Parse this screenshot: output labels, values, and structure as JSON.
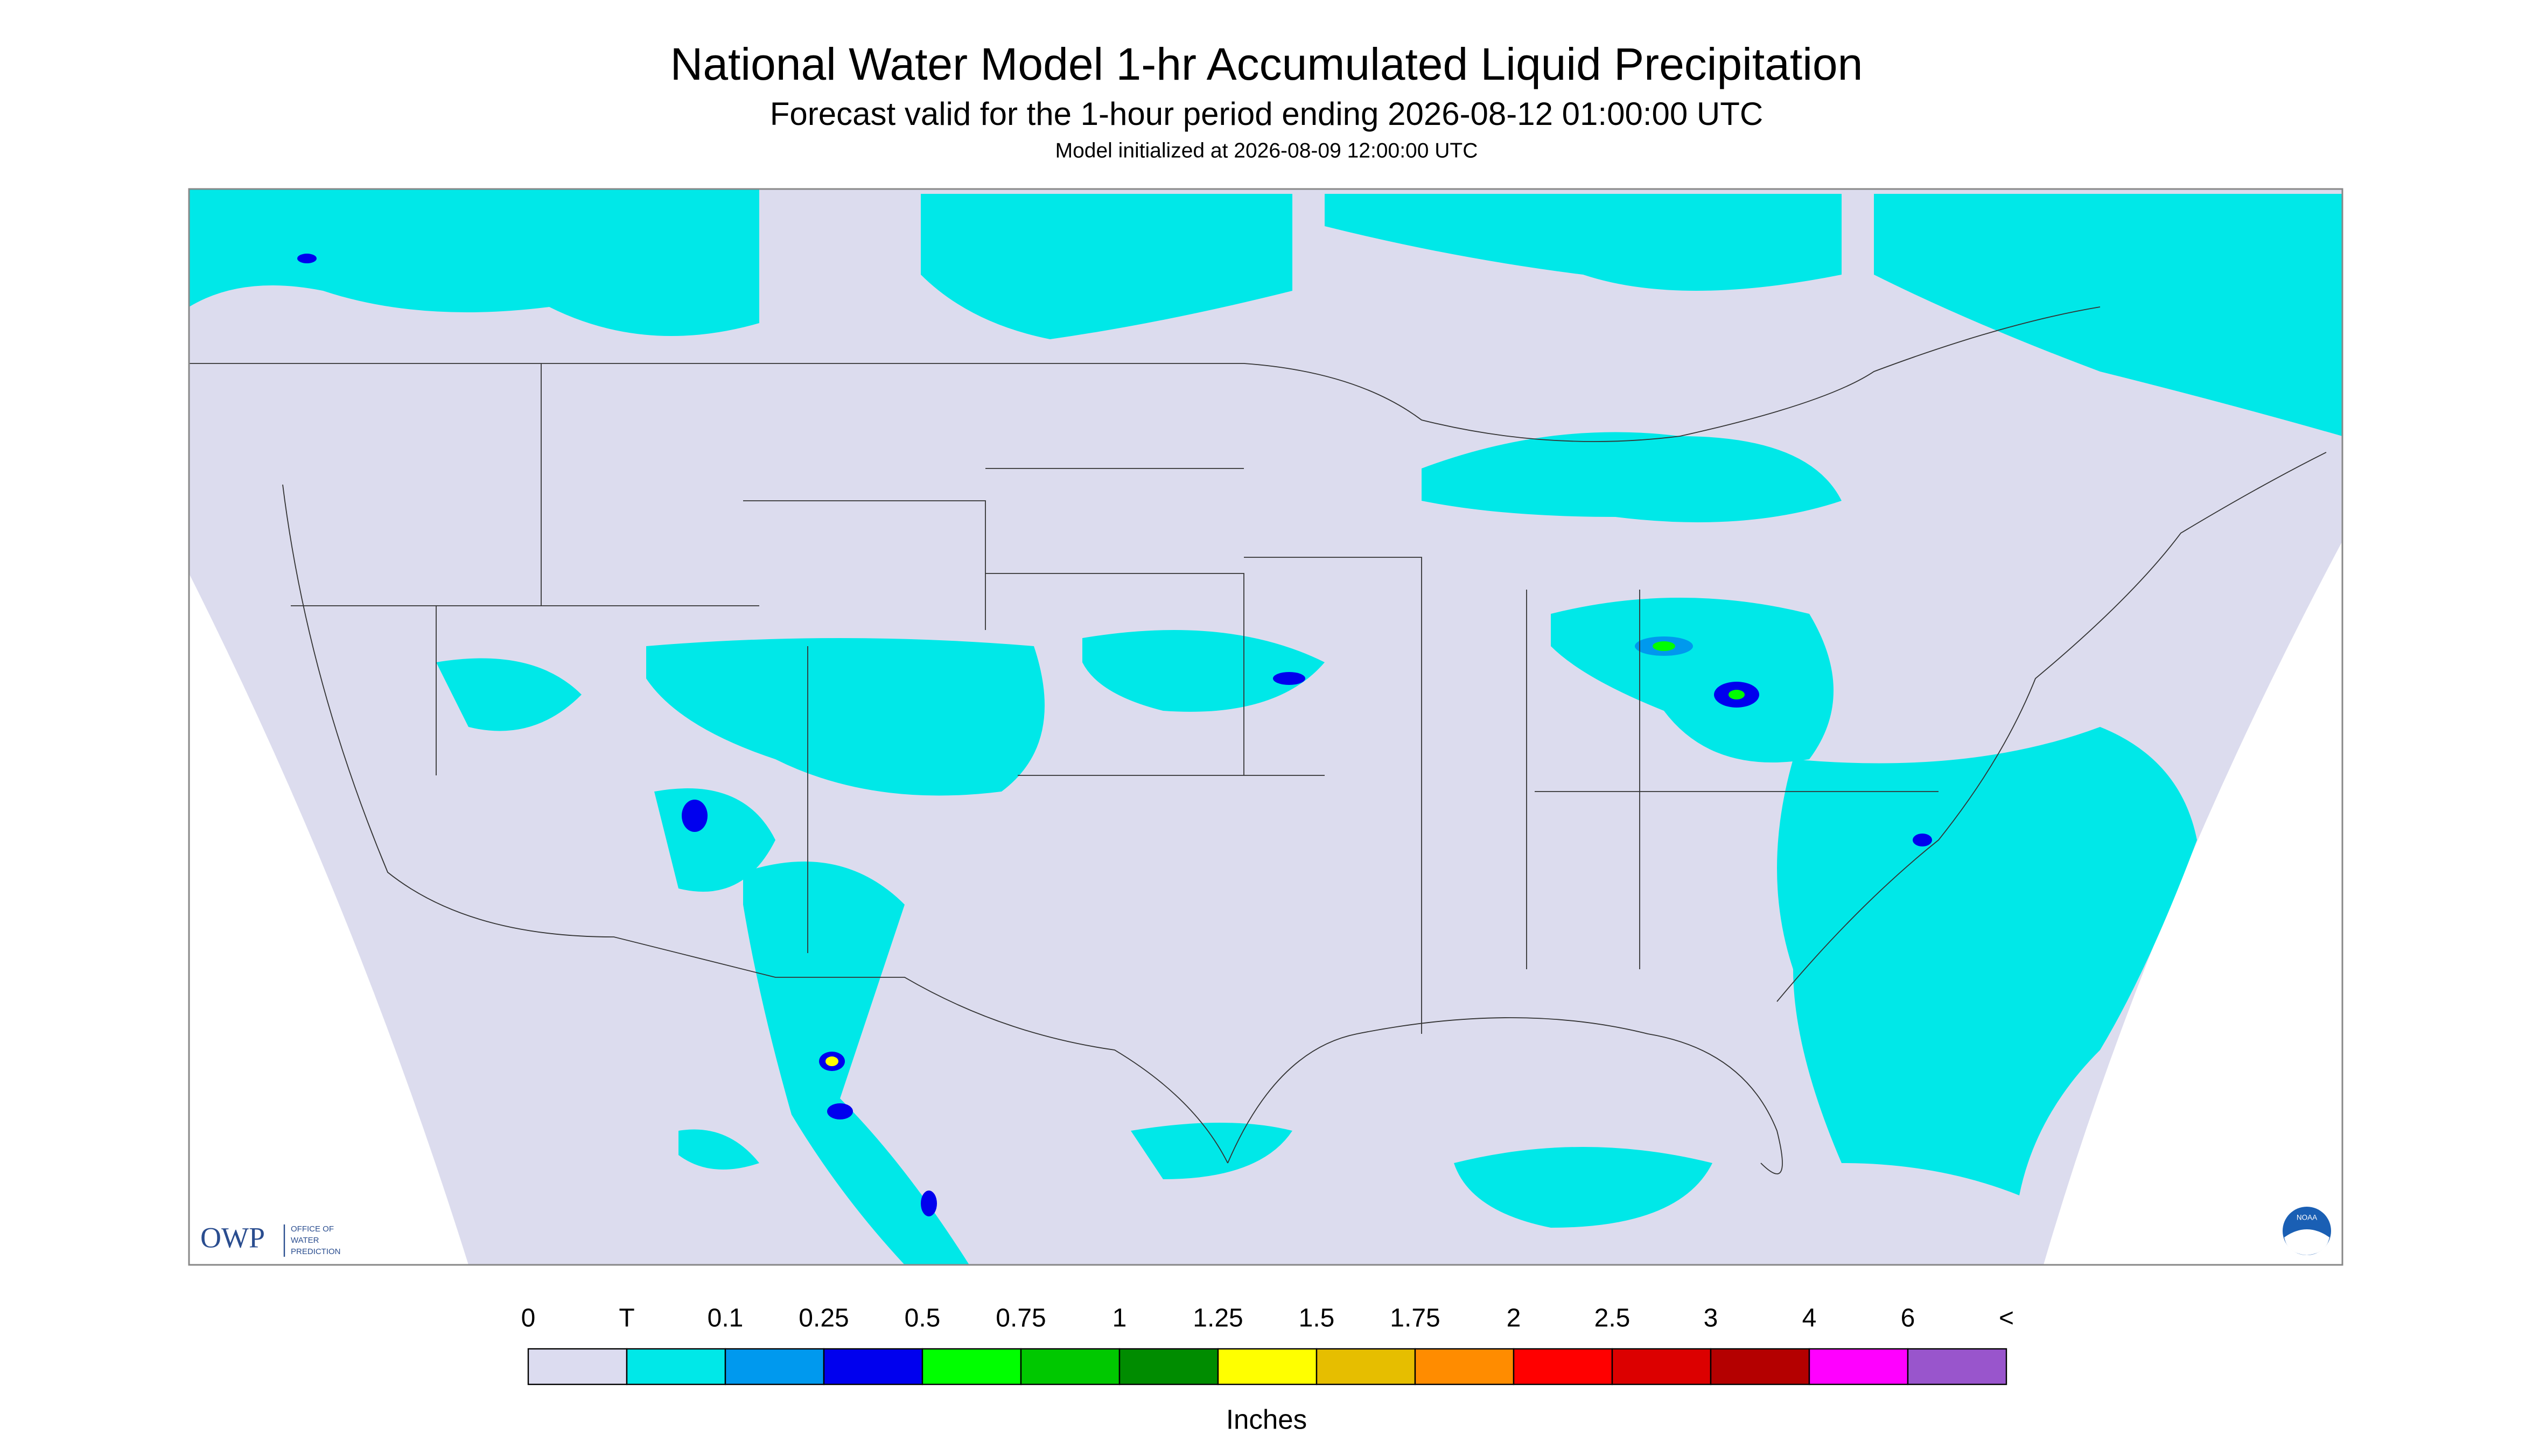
{
  "header": {
    "title": "National Water Model 1-hr Accumulated Liquid Precipitation",
    "subtitle": "Forecast valid for the 1-hour period ending 2026-08-12 01:00:00 UTC",
    "note": "Model initialized at 2026-08-09 12:00:00 UTC"
  },
  "logo": {
    "left": "OWP",
    "left_sub": [
      "OFFICE OF",
      "WATER",
      "PREDICTION"
    ],
    "right": "NOAA"
  },
  "legend": {
    "labels": [
      "0",
      "T",
      "0.1",
      "0.25",
      "0.5",
      "0.75",
      "1",
      "1.25",
      "1.5",
      "1.75",
      "2",
      "2.5",
      "3",
      "4",
      "6",
      "<"
    ],
    "colors": [
      "#dcdcf0",
      "#00e8e8",
      "#0099ee",
      "#0000ee",
      "#00ff00",
      "#00c800",
      "#008c00",
      "#ffff00",
      "#e6be00",
      "#ff8c00",
      "#ff0000",
      "#dc0000",
      "#b40000",
      "#ff00ff",
      "#9955cc"
    ],
    "unit": "Inches"
  }
}
